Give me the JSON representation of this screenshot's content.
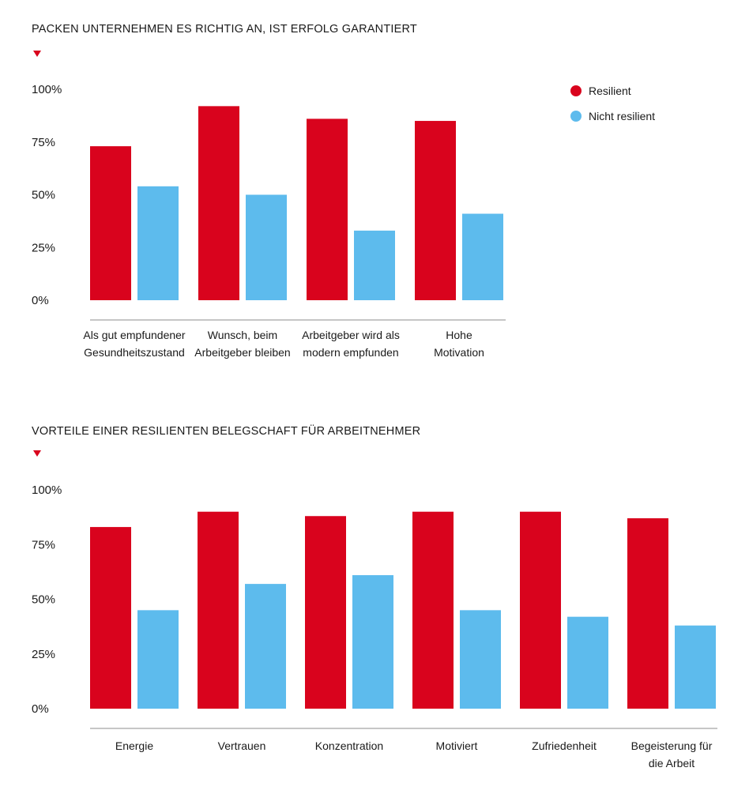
{
  "colors": {
    "resilient": "#d9031d",
    "nicht_resilient": "#5dbbed",
    "axis": "#8c8c8c",
    "marker": "#d9031d"
  },
  "legend": {
    "items": [
      {
        "label": "Resilient",
        "color": "#d9031d"
      },
      {
        "label": "Nicht resilient",
        "color": "#5dbbed"
      }
    ],
    "position": "top-right"
  },
  "chart_data": [
    {
      "type": "bar",
      "title": "PACKEN UNTERNEHMEN ES RICHTIG AN, IST ERFOLG GARANTIERT",
      "yticks": [
        "100%",
        "75%",
        "50%",
        "25%",
        "0%"
      ],
      "ylim": [
        0,
        100
      ],
      "grid": false,
      "categories": [
        [
          "Als gut empfundener",
          "Gesundheitszustand"
        ],
        [
          "Wunsch, beim",
          "Arbeitgeber bleiben"
        ],
        [
          "Arbeitgeber wird als",
          "modern empfunden"
        ],
        [
          "Hohe",
          "Motivation"
        ]
      ],
      "series": [
        {
          "name": "Resilient",
          "values": [
            73,
            92,
            86,
            85
          ]
        },
        {
          "name": "Nicht resilient",
          "values": [
            54,
            50,
            33,
            41
          ]
        }
      ]
    },
    {
      "type": "bar",
      "title": "VORTEILE EINER RESILIENTEN BELEGSCHAFT FÜR ARBEITNEHMER",
      "yticks": [
        "100%",
        "75%",
        "50%",
        "25%",
        "0%"
      ],
      "ylim": [
        0,
        100
      ],
      "grid": false,
      "categories": [
        [
          "Energie"
        ],
        [
          "Vertrauen"
        ],
        [
          "Konzentration"
        ],
        [
          "Motiviert"
        ],
        [
          "Zufriedenheit"
        ],
        [
          "Begeisterung für",
          "die Arbeit"
        ]
      ],
      "series": [
        {
          "name": "Resilient",
          "values": [
            83,
            90,
            88,
            90,
            90,
            87
          ]
        },
        {
          "name": "Nicht resilient",
          "values": [
            45,
            57,
            61,
            45,
            42,
            38
          ]
        }
      ]
    }
  ]
}
